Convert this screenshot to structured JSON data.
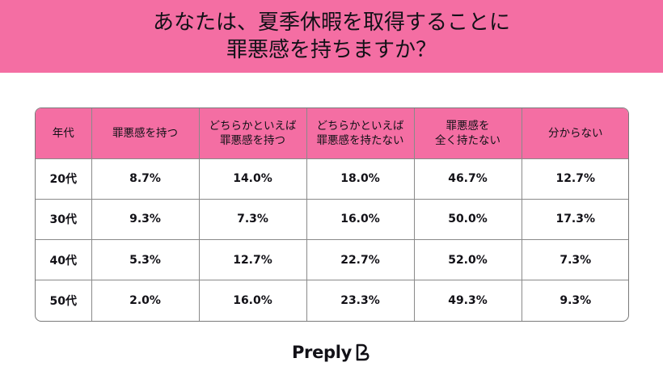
{
  "title": {
    "line1": "あなたは、夏季休暇を取得することに",
    "line2": "罪悪感を持ちますか？"
  },
  "table": {
    "headers": [
      "年代",
      "罪悪感を持つ",
      "どちらかといえば\n罪悪感を持つ",
      "どちらかといえば\n罪悪感を持たない",
      "罪悪感を\n全く持たない",
      "分からない"
    ],
    "rows": [
      [
        "20代",
        "8.7%",
        "14.0%",
        "18.0%",
        "46.7%",
        "12.7%"
      ],
      [
        "30代",
        "9.3%",
        "7.3%",
        "16.0%",
        "50.0%",
        "17.3%"
      ],
      [
        "40代",
        "5.3%",
        "12.7%",
        "22.7%",
        "52.0%",
        "7.3%"
      ],
      [
        "50代",
        "2.0%",
        "16.0%",
        "23.3%",
        "49.3%",
        "9.3%"
      ]
    ]
  },
  "brand": {
    "name": "Preply",
    "icon": "preply-logo-icon"
  },
  "colors": {
    "accent": "#f46ea3",
    "text": "#121117",
    "border": "#8a8a8a"
  }
}
